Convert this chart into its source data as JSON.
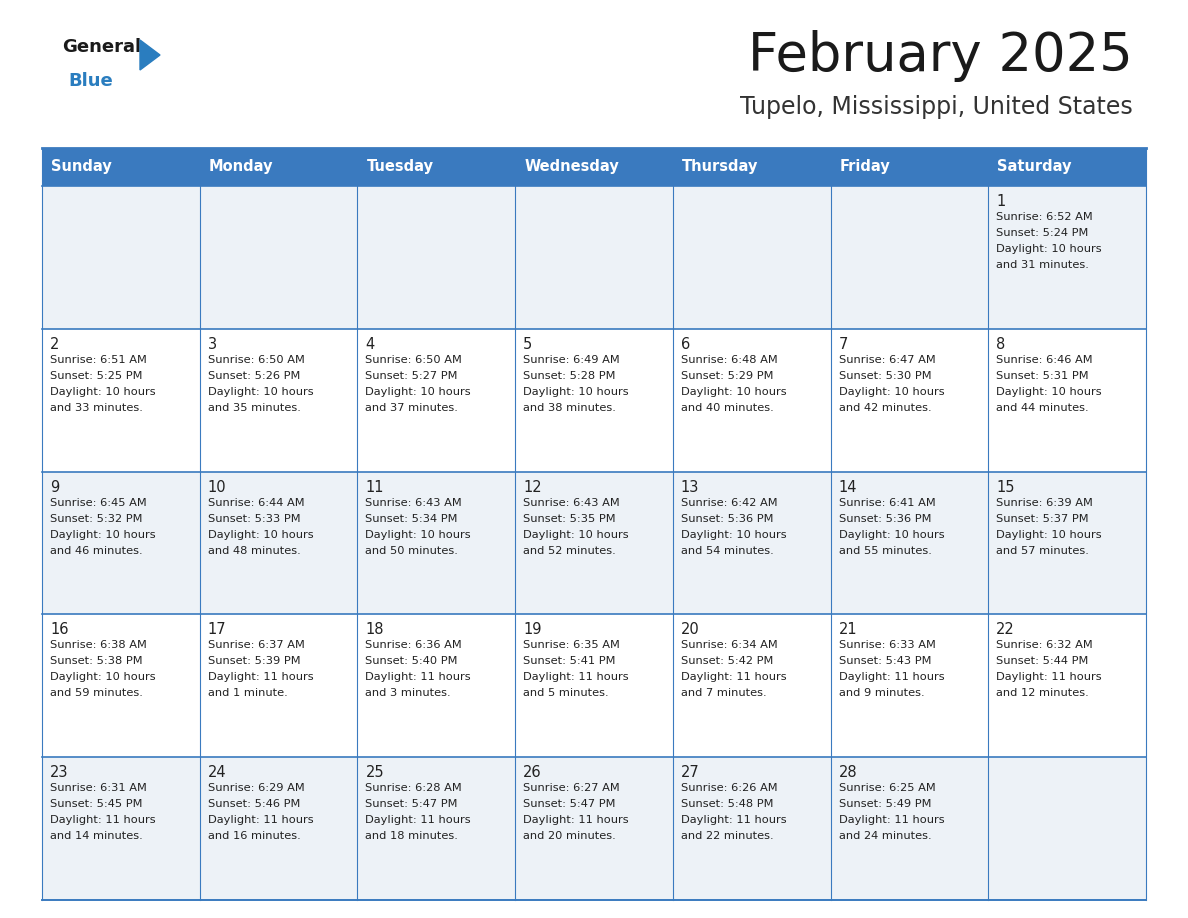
{
  "title": "February 2025",
  "subtitle": "Tupelo, Mississippi, United States",
  "days_of_week": [
    "Sunday",
    "Monday",
    "Tuesday",
    "Wednesday",
    "Thursday",
    "Friday",
    "Saturday"
  ],
  "header_bg": "#3a7abf",
  "header_text": "#ffffff",
  "row_bg_light": "#edf2f7",
  "row_bg_white": "#ffffff",
  "border_color": "#3a7abf",
  "title_color": "#1a1a1a",
  "subtitle_color": "#333333",
  "text_color": "#222222",
  "logo_general_color": "#1a1a1a",
  "logo_blue_color": "#2a7dbf",
  "logo_triangle_color": "#2a7dbf",
  "calendar": [
    [
      null,
      null,
      null,
      null,
      null,
      null,
      {
        "day": "1",
        "sunrise": "6:52 AM",
        "sunset": "5:24 PM",
        "daylight_line1": "Daylight: 10 hours",
        "daylight_line2": "and 31 minutes."
      }
    ],
    [
      {
        "day": "2",
        "sunrise": "6:51 AM",
        "sunset": "5:25 PM",
        "daylight_line1": "Daylight: 10 hours",
        "daylight_line2": "and 33 minutes."
      },
      {
        "day": "3",
        "sunrise": "6:50 AM",
        "sunset": "5:26 PM",
        "daylight_line1": "Daylight: 10 hours",
        "daylight_line2": "and 35 minutes."
      },
      {
        "day": "4",
        "sunrise": "6:50 AM",
        "sunset": "5:27 PM",
        "daylight_line1": "Daylight: 10 hours",
        "daylight_line2": "and 37 minutes."
      },
      {
        "day": "5",
        "sunrise": "6:49 AM",
        "sunset": "5:28 PM",
        "daylight_line1": "Daylight: 10 hours",
        "daylight_line2": "and 38 minutes."
      },
      {
        "day": "6",
        "sunrise": "6:48 AM",
        "sunset": "5:29 PM",
        "daylight_line1": "Daylight: 10 hours",
        "daylight_line2": "and 40 minutes."
      },
      {
        "day": "7",
        "sunrise": "6:47 AM",
        "sunset": "5:30 PM",
        "daylight_line1": "Daylight: 10 hours",
        "daylight_line2": "and 42 minutes."
      },
      {
        "day": "8",
        "sunrise": "6:46 AM",
        "sunset": "5:31 PM",
        "daylight_line1": "Daylight: 10 hours",
        "daylight_line2": "and 44 minutes."
      }
    ],
    [
      {
        "day": "9",
        "sunrise": "6:45 AM",
        "sunset": "5:32 PM",
        "daylight_line1": "Daylight: 10 hours",
        "daylight_line2": "and 46 minutes."
      },
      {
        "day": "10",
        "sunrise": "6:44 AM",
        "sunset": "5:33 PM",
        "daylight_line1": "Daylight: 10 hours",
        "daylight_line2": "and 48 minutes."
      },
      {
        "day": "11",
        "sunrise": "6:43 AM",
        "sunset": "5:34 PM",
        "daylight_line1": "Daylight: 10 hours",
        "daylight_line2": "and 50 minutes."
      },
      {
        "day": "12",
        "sunrise": "6:43 AM",
        "sunset": "5:35 PM",
        "daylight_line1": "Daylight: 10 hours",
        "daylight_line2": "and 52 minutes."
      },
      {
        "day": "13",
        "sunrise": "6:42 AM",
        "sunset": "5:36 PM",
        "daylight_line1": "Daylight: 10 hours",
        "daylight_line2": "and 54 minutes."
      },
      {
        "day": "14",
        "sunrise": "6:41 AM",
        "sunset": "5:36 PM",
        "daylight_line1": "Daylight: 10 hours",
        "daylight_line2": "and 55 minutes."
      },
      {
        "day": "15",
        "sunrise": "6:39 AM",
        "sunset": "5:37 PM",
        "daylight_line1": "Daylight: 10 hours",
        "daylight_line2": "and 57 minutes."
      }
    ],
    [
      {
        "day": "16",
        "sunrise": "6:38 AM",
        "sunset": "5:38 PM",
        "daylight_line1": "Daylight: 10 hours",
        "daylight_line2": "and 59 minutes."
      },
      {
        "day": "17",
        "sunrise": "6:37 AM",
        "sunset": "5:39 PM",
        "daylight_line1": "Daylight: 11 hours",
        "daylight_line2": "and 1 minute."
      },
      {
        "day": "18",
        "sunrise": "6:36 AM",
        "sunset": "5:40 PM",
        "daylight_line1": "Daylight: 11 hours",
        "daylight_line2": "and 3 minutes."
      },
      {
        "day": "19",
        "sunrise": "6:35 AM",
        "sunset": "5:41 PM",
        "daylight_line1": "Daylight: 11 hours",
        "daylight_line2": "and 5 minutes."
      },
      {
        "day": "20",
        "sunrise": "6:34 AM",
        "sunset": "5:42 PM",
        "daylight_line1": "Daylight: 11 hours",
        "daylight_line2": "and 7 minutes."
      },
      {
        "day": "21",
        "sunrise": "6:33 AM",
        "sunset": "5:43 PM",
        "daylight_line1": "Daylight: 11 hours",
        "daylight_line2": "and 9 minutes."
      },
      {
        "day": "22",
        "sunrise": "6:32 AM",
        "sunset": "5:44 PM",
        "daylight_line1": "Daylight: 11 hours",
        "daylight_line2": "and 12 minutes."
      }
    ],
    [
      {
        "day": "23",
        "sunrise": "6:31 AM",
        "sunset": "5:45 PM",
        "daylight_line1": "Daylight: 11 hours",
        "daylight_line2": "and 14 minutes."
      },
      {
        "day": "24",
        "sunrise": "6:29 AM",
        "sunset": "5:46 PM",
        "daylight_line1": "Daylight: 11 hours",
        "daylight_line2": "and 16 minutes."
      },
      {
        "day": "25",
        "sunrise": "6:28 AM",
        "sunset": "5:47 PM",
        "daylight_line1": "Daylight: 11 hours",
        "daylight_line2": "and 18 minutes."
      },
      {
        "day": "26",
        "sunrise": "6:27 AM",
        "sunset": "5:47 PM",
        "daylight_line1": "Daylight: 11 hours",
        "daylight_line2": "and 20 minutes."
      },
      {
        "day": "27",
        "sunrise": "6:26 AM",
        "sunset": "5:48 PM",
        "daylight_line1": "Daylight: 11 hours",
        "daylight_line2": "and 22 minutes."
      },
      {
        "day": "28",
        "sunrise": "6:25 AM",
        "sunset": "5:49 PM",
        "daylight_line1": "Daylight: 11 hours",
        "daylight_line2": "and 24 minutes."
      },
      null
    ]
  ]
}
